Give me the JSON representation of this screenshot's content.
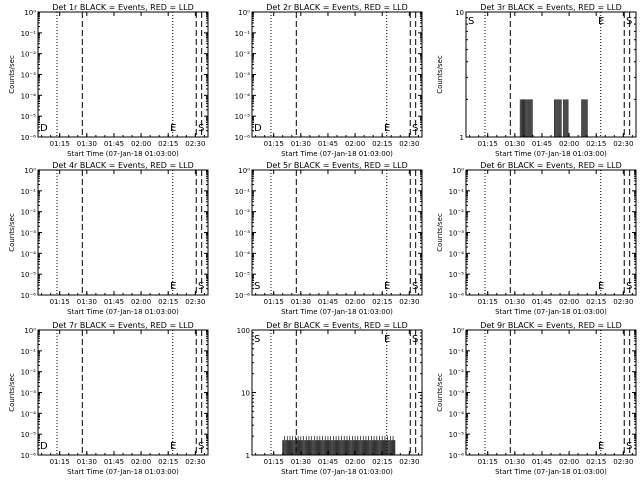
{
  "x_tick_labels": [
    "01:15",
    "01:30",
    "01:45",
    "02:00",
    "02:15",
    "02:30"
  ],
  "x_axis_label": "Start Time (07-Jan-18 01:03:00)",
  "y_axis_label": "Counts/sec",
  "chart_data": [
    {
      "type": "line",
      "title": "Det 1r BLACK = Events, RED = LLD",
      "xlabel": "Start Time (07-Jan-18 01:03:00)",
      "ylabel": "Counts/sec",
      "y_scale": "log",
      "ylim": [
        1e-06,
        1
      ],
      "y_tick_labels": [
        "10⁻⁶",
        "10⁻⁵",
        "10⁻⁴",
        "10⁻³",
        "10⁻²",
        "10⁻¹",
        "10⁰"
      ],
      "x_ticks": [
        "01:15",
        "01:30",
        "01:45",
        "02:00",
        "02:15",
        "02:30"
      ],
      "markers": [
        {
          "label": "D",
          "side": "left"
        },
        {
          "label": "E",
          "side": "right"
        },
        {
          "label": "S",
          "side": "right"
        }
      ],
      "values": []
    },
    {
      "type": "line",
      "title": "Det 2r BLACK = Events, RED = LLD",
      "xlabel": "Start Time (07-Jan-18 01:03:00)",
      "ylabel": "",
      "y_scale": "log",
      "ylim": [
        1e-06,
        1
      ],
      "y_tick_labels": [
        "10⁻⁶",
        "10⁻⁵",
        "10⁻⁴",
        "10⁻³",
        "10⁻²",
        "10⁻¹",
        "10⁰"
      ],
      "x_ticks": [
        "01:15",
        "01:30",
        "01:45",
        "02:00",
        "02:15",
        "02:30"
      ],
      "markers": [
        {
          "label": "D",
          "side": "left"
        },
        {
          "label": "E",
          "side": "right"
        },
        {
          "label": "S",
          "side": "right"
        }
      ],
      "values": []
    },
    {
      "type": "line",
      "title": "Det 3r BLACK = Events, RED = LLD",
      "xlabel": "Start Time (07-Jan-18 01:03:00)",
      "ylabel": "Counts/sec",
      "y_scale": "log",
      "ylim": [
        1,
        10
      ],
      "y_tick_labels": [
        "1",
        "10"
      ],
      "x_ticks": [
        "01:15",
        "01:30",
        "01:45",
        "02:00",
        "02:15",
        "02:30"
      ],
      "markers": [
        {
          "label": "S",
          "side": "left"
        },
        {
          "label": "E",
          "side": "right"
        },
        {
          "label": "S",
          "side": "right"
        }
      ],
      "values": "sparse 2 counts/sec events between 01:33 and 02:10"
    },
    {
      "type": "line",
      "title": "Det 4r BLACK = Events, RED = LLD",
      "xlabel": "Start Time (07-Jan-18 01:03:00)",
      "ylabel": "Counts/sec",
      "y_scale": "log",
      "ylim": [
        1e-06,
        1
      ],
      "y_tick_labels": [
        "10⁻⁶",
        "10⁻⁵",
        "10⁻⁴",
        "10⁻³",
        "10⁻²",
        "10⁻¹",
        "10⁰"
      ],
      "x_ticks": [
        "01:15",
        "01:30",
        "01:45",
        "02:00",
        "02:15",
        "02:30"
      ],
      "markers": [
        {
          "label": "E",
          "side": "right"
        },
        {
          "label": "S",
          "side": "right"
        }
      ],
      "values": []
    },
    {
      "type": "line",
      "title": "Det 5r BLACK = Events, RED = LLD",
      "xlabel": "Start Time (07-Jan-18 01:03:00)",
      "ylabel": "",
      "y_scale": "log",
      "ylim": [
        1e-06,
        1
      ],
      "y_tick_labels": [
        "10⁻⁶",
        "10⁻⁵",
        "10⁻⁴",
        "10⁻³",
        "10⁻²",
        "10⁻¹",
        "10⁰"
      ],
      "x_ticks": [
        "01:15",
        "01:30",
        "01:45",
        "02:00",
        "02:15",
        "02:30"
      ],
      "markers": [
        {
          "label": "S",
          "side": "left"
        },
        {
          "label": "E",
          "side": "right"
        },
        {
          "label": "S",
          "side": "right"
        }
      ],
      "values": []
    },
    {
      "type": "line",
      "title": "Det 6r BLACK = Events, RED = LLD",
      "xlabel": "Start Time (07-Jan-18 01:03:00)",
      "ylabel": "Counts/sec",
      "y_scale": "log",
      "ylim": [
        1e-06,
        1
      ],
      "y_tick_labels": [
        "10⁻⁶",
        "10⁻⁵",
        "10⁻⁴",
        "10⁻³",
        "10⁻²",
        "10⁻¹",
        "10⁰"
      ],
      "x_ticks": [
        "01:15",
        "01:30",
        "01:45",
        "02:00",
        "02:15",
        "02:30"
      ],
      "markers": [
        {
          "label": "E",
          "side": "right"
        },
        {
          "label": "S",
          "side": "right"
        }
      ],
      "values": []
    },
    {
      "type": "line",
      "title": "Det 7r BLACK = Events, RED = LLD",
      "xlabel": "Start Time (07-Jan-18 01:03:00)",
      "ylabel": "Counts/sec",
      "y_scale": "log",
      "ylim": [
        1e-06,
        1
      ],
      "y_tick_labels": [
        "10⁻⁶",
        "10⁻⁵",
        "10⁻⁴",
        "10⁻³",
        "10⁻²",
        "10⁻¹",
        "10⁰"
      ],
      "x_ticks": [
        "01:15",
        "01:30",
        "01:45",
        "02:00",
        "02:15",
        "02:30"
      ],
      "markers": [
        {
          "label": "D",
          "side": "left"
        },
        {
          "label": "E",
          "side": "right"
        },
        {
          "label": "S",
          "side": "right"
        }
      ],
      "values": []
    },
    {
      "type": "line",
      "title": "Det 8r BLACK = Events, RED = LLD",
      "xlabel": "Start Time (07-Jan-18 01:03:00)",
      "ylabel": "",
      "y_scale": "log",
      "ylim": [
        1,
        100
      ],
      "y_tick_labels": [
        "1",
        "10",
        "100"
      ],
      "x_ticks": [
        "01:15",
        "01:30",
        "01:45",
        "02:00",
        "02:15",
        "02:30"
      ],
      "markers": [
        {
          "label": "S",
          "side": "left"
        },
        {
          "label": "E",
          "side": "right"
        },
        {
          "label": "S",
          "side": "right"
        }
      ],
      "values": "dense 1–2 counts/sec events between 01:20 and 02:22"
    },
    {
      "type": "line",
      "title": "Det 9r BLACK = Events, RED = LLD",
      "xlabel": "Start Time (07-Jan-18 01:03:00)",
      "ylabel": "Counts/sec",
      "y_scale": "log",
      "ylim": [
        1e-06,
        1
      ],
      "y_tick_labels": [
        "10⁻⁶",
        "10⁻⁵",
        "10⁻⁴",
        "10⁻³",
        "10⁻²",
        "10⁻¹",
        "10⁰"
      ],
      "x_ticks": [
        "01:15",
        "01:30",
        "01:45",
        "02:00",
        "02:15",
        "02:30"
      ],
      "markers": [
        {
          "label": "E",
          "side": "right"
        },
        {
          "label": "S",
          "side": "right"
        }
      ],
      "values": []
    }
  ]
}
